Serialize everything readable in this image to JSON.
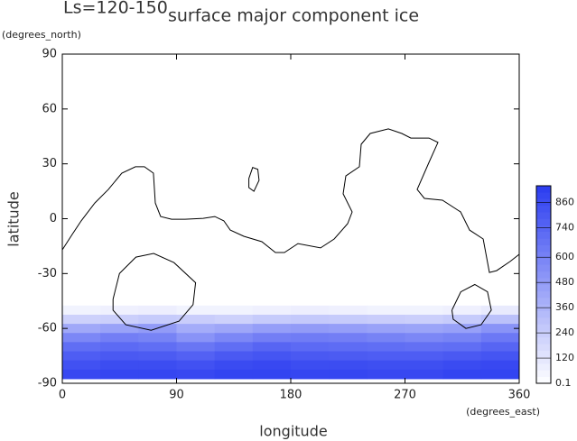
{
  "chart_data": {
    "type": "heatmap",
    "title": "surface major component ice",
    "subtitle": "Ls=120-150",
    "x_label": "longitude",
    "x_units": "(degrees_east)",
    "y_label": "latitude",
    "y_units": "(degrees_north)",
    "xlim": [
      0,
      360
    ],
    "xticks": [
      0,
      90,
      180,
      270,
      360
    ],
    "ylim": [
      -90,
      90
    ],
    "yticks": [
      90,
      60,
      30,
      0,
      -30,
      -60,
      -90
    ],
    "x": [
      0,
      30,
      60,
      90,
      120,
      150,
      180,
      210,
      240,
      270,
      300,
      330,
      360
    ],
    "y": [
      -47.5,
      -52.5,
      -57.5,
      -62.5,
      -67.5,
      -72.5,
      -77.5,
      -82.5,
      -87.5
    ],
    "values": [
      [
        60,
        70,
        80,
        60,
        60,
        70,
        80,
        70,
        60,
        60,
        70,
        100
      ],
      [
        220,
        230,
        250,
        240,
        220,
        250,
        260,
        250,
        240,
        230,
        250,
        300
      ],
      [
        420,
        450,
        480,
        400,
        430,
        470,
        480,
        470,
        450,
        440,
        460,
        520
      ],
      [
        580,
        620,
        600,
        520,
        580,
        620,
        630,
        620,
        600,
        580,
        600,
        650
      ],
      [
        700,
        720,
        700,
        660,
        700,
        740,
        720,
        710,
        700,
        690,
        700,
        740
      ],
      [
        780,
        800,
        790,
        760,
        800,
        820,
        800,
        790,
        780,
        780,
        800,
        820
      ],
      [
        840,
        860,
        860,
        840,
        870,
        880,
        860,
        860,
        850,
        850,
        870,
        880
      ],
      [
        880,
        890,
        890,
        880,
        900,
        900,
        890,
        890,
        880,
        880,
        900,
        900
      ]
    ],
    "color": "#2a3cf0",
    "zlim": [
      0.1,
      940
    ],
    "zticks": [
      0.1,
      120,
      240,
      360,
      480,
      600,
      740,
      860
    ],
    "contours": [
      {
        "x": [
          0,
          7.8,
          14.9,
          25.6,
          36.3,
          46.9,
          57.6,
          64.7,
          71.8,
          73.3,
          77.5,
          86.1,
          96.7,
          111,
          120.2,
          127.3,
          132.3,
          143,
          157.2,
          167.9,
          175,
          185.7,
          203.5,
          214.2,
          224.8,
          228.4,
          221.3,
          223.4,
          234.1,
          235.5,
          242.6,
          256.9,
          267.5,
          274.6,
          288.9,
          296,
          288.9,
          279.6,
          285.3,
          299.5,
          313.8,
          320.9,
          331.6,
          336.5,
          342.2,
          352.9,
          360
        ],
        "y": [
          -17,
          -8.6,
          -1.2,
          8.6,
          16,
          24.9,
          28.4,
          28.4,
          24.9,
          8.6,
          1.2,
          -0.3,
          -0.3,
          0.2,
          1.2,
          -1.2,
          -6.2,
          -9.6,
          -12.6,
          -18.5,
          -18.5,
          -13.6,
          -16,
          -11.1,
          -2.7,
          3.7,
          13.6,
          23.4,
          28.4,
          40.7,
          46.6,
          49.1,
          46.6,
          44.1,
          44.1,
          41.7,
          30.8,
          16,
          11.1,
          10.1,
          3.7,
          -6.2,
          -11.1,
          -29.4,
          -28.4,
          -23.4,
          -19.5
        ]
      },
      {
        "x": [
          147,
          150,
          154,
          155,
          151,
          147,
          147
        ],
        "y": [
          22,
          28,
          27,
          21,
          15,
          17,
          22
        ]
      },
      {
        "x": [
          40,
          45,
          58,
          72,
          88,
          105,
          103,
          92,
          70,
          50,
          40,
          40
        ],
        "y": [
          -44,
          -30,
          -21,
          -19,
          -24,
          -35,
          -47,
          -56,
          -61,
          -58,
          -50,
          -44
        ]
      },
      {
        "x": [
          307,
          314,
          325,
          335,
          338,
          330,
          318,
          308,
          307
        ],
        "y": [
          -50,
          -40,
          -36,
          -40,
          -50,
          -58,
          -60,
          -55,
          -50
        ]
      }
    ]
  }
}
